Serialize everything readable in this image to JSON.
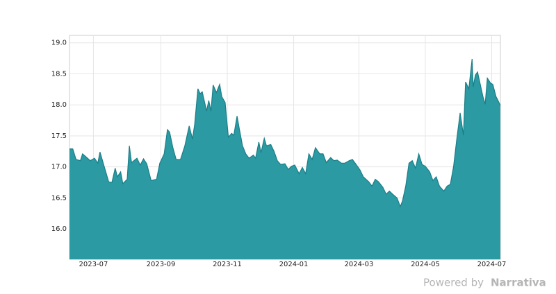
{
  "chart_data": {
    "type": "area",
    "color": "#2b9aa3",
    "line_color": "#1c7e87",
    "grid": true,
    "footer": {
      "prefix": "Powered by",
      "brand": "Narrativa"
    },
    "xlim": [
      "2023-06-09",
      "2024-07-09"
    ],
    "xticks": [
      "2023-07",
      "2023-09",
      "2023-11",
      "2024-01",
      "2024-03",
      "2024-05",
      "2024-07"
    ],
    "ylim": [
      15.51,
      19.12
    ],
    "yticks": [
      {
        "value": 16,
        "label": "16.0"
      },
      16.5,
      {
        "value": 17,
        "label": "17.0"
      },
      17.5,
      {
        "value": 18,
        "label": "18.0"
      },
      18.5,
      {
        "value": 19,
        "label": "19.0"
      }
    ],
    "x": [
      "2023-06-09",
      "2023-06-12",
      "2023-06-15",
      "2023-06-19",
      "2023-06-21",
      "2023-06-25",
      "2023-06-28",
      "2023-07-02",
      "2023-07-05",
      "2023-07-07",
      "2023-07-10",
      "2023-07-15",
      "2023-07-18",
      "2023-07-21",
      "2023-07-23",
      "2023-07-26",
      "2023-07-28",
      "2023-08-01",
      "2023-08-03",
      "2023-08-05",
      "2023-08-10",
      "2023-08-13",
      "2023-08-16",
      "2023-08-19",
      "2023-08-23",
      "2023-08-28",
      "2023-08-31",
      "2023-09-04",
      "2023-09-07",
      "2023-09-09",
      "2023-09-12",
      "2023-09-15",
      "2023-09-19",
      "2023-09-23",
      "2023-09-27",
      "2023-09-30",
      "2023-10-02",
      "2023-10-05",
      "2023-10-07",
      "2023-10-09",
      "2023-10-13",
      "2023-10-15",
      "2023-10-17",
      "2023-10-19",
      "2023-10-22",
      "2023-10-25",
      "2023-10-27",
      "2023-10-30",
      "2023-11-02",
      "2023-11-05",
      "2023-11-07",
      "2023-11-10",
      "2023-11-12",
      "2023-11-15",
      "2023-11-18",
      "2023-11-21",
      "2023-11-25",
      "2023-11-27",
      "2023-11-30",
      "2023-12-02",
      "2023-12-05",
      "2023-12-07",
      "2023-12-11",
      "2023-12-14",
      "2023-12-17",
      "2023-12-20",
      "2023-12-24",
      "2023-12-27",
      "2023-12-30",
      "2024-01-02",
      "2024-01-06",
      "2024-01-09",
      "2024-01-12",
      "2024-01-15",
      "2024-01-18",
      "2024-01-21",
      "2024-01-25",
      "2024-01-28",
      "2024-01-31",
      "2024-02-04",
      "2024-02-07",
      "2024-02-10",
      "2024-02-14",
      "2024-02-17",
      "2024-02-21",
      "2024-02-24",
      "2024-02-27",
      "2024-03-02",
      "2024-03-05",
      "2024-03-10",
      "2024-03-13",
      "2024-03-16",
      "2024-03-19",
      "2024-03-23",
      "2024-03-26",
      "2024-03-29",
      "2024-04-01",
      "2024-04-05",
      "2024-04-08",
      "2024-04-10",
      "2024-04-13",
      "2024-04-16",
      "2024-04-19",
      "2024-04-22",
      "2024-04-25",
      "2024-04-28",
      "2024-05-01",
      "2024-05-05",
      "2024-05-08",
      "2024-05-11",
      "2024-05-14",
      "2024-05-18",
      "2024-05-21",
      "2024-05-24",
      "2024-05-27",
      "2024-05-30",
      "2024-06-02",
      "2024-06-05",
      "2024-06-07",
      "2024-06-10",
      "2024-06-13",
      "2024-06-14",
      "2024-06-16",
      "2024-06-18",
      "2024-06-20",
      "2024-06-23",
      "2024-06-25",
      "2024-06-27",
      "2024-06-30",
      "2024-07-02",
      "2024-07-05",
      "2024-07-06",
      "2024-07-09"
    ],
    "values": [
      17.29,
      17.29,
      17.12,
      17.1,
      17.21,
      17.15,
      17.1,
      17.14,
      17.06,
      17.24,
      17.06,
      16.76,
      16.75,
      16.98,
      16.84,
      16.92,
      16.73,
      16.8,
      17.34,
      17.07,
      17.14,
      17.03,
      17.13,
      17.05,
      16.78,
      16.8,
      17.06,
      17.21,
      17.6,
      17.56,
      17.31,
      17.12,
      17.12,
      17.34,
      17.66,
      17.45,
      17.68,
      18.26,
      18.18,
      18.21,
      17.9,
      18.07,
      17.9,
      18.32,
      18.2,
      18.33,
      18.13,
      18.04,
      17.48,
      17.54,
      17.51,
      17.82,
      17.62,
      17.34,
      17.21,
      17.14,
      17.19,
      17.14,
      17.4,
      17.23,
      17.46,
      17.34,
      17.36,
      17.25,
      17.1,
      17.04,
      17.05,
      16.96,
      17.01,
      17.03,
      16.89,
      16.99,
      16.89,
      17.21,
      17.12,
      17.31,
      17.21,
      17.21,
      17.07,
      17.15,
      17.1,
      17.11,
      17.06,
      17.06,
      17.1,
      17.12,
      17.05,
      16.95,
      16.84,
      16.76,
      16.69,
      16.8,
      16.76,
      16.67,
      16.56,
      16.61,
      16.56,
      16.5,
      16.36,
      16.45,
      16.69,
      17.06,
      17.1,
      16.98,
      17.21,
      17.04,
      17.01,
      16.92,
      16.78,
      16.84,
      16.69,
      16.61,
      16.69,
      16.72,
      17.01,
      17.46,
      17.87,
      17.51,
      18.37,
      18.26,
      18.74,
      18.29,
      18.48,
      18.53,
      18.37,
      18.13,
      18.01,
      18.43,
      18.35,
      18.33,
      18.13,
      18.1,
      17.99
    ]
  }
}
